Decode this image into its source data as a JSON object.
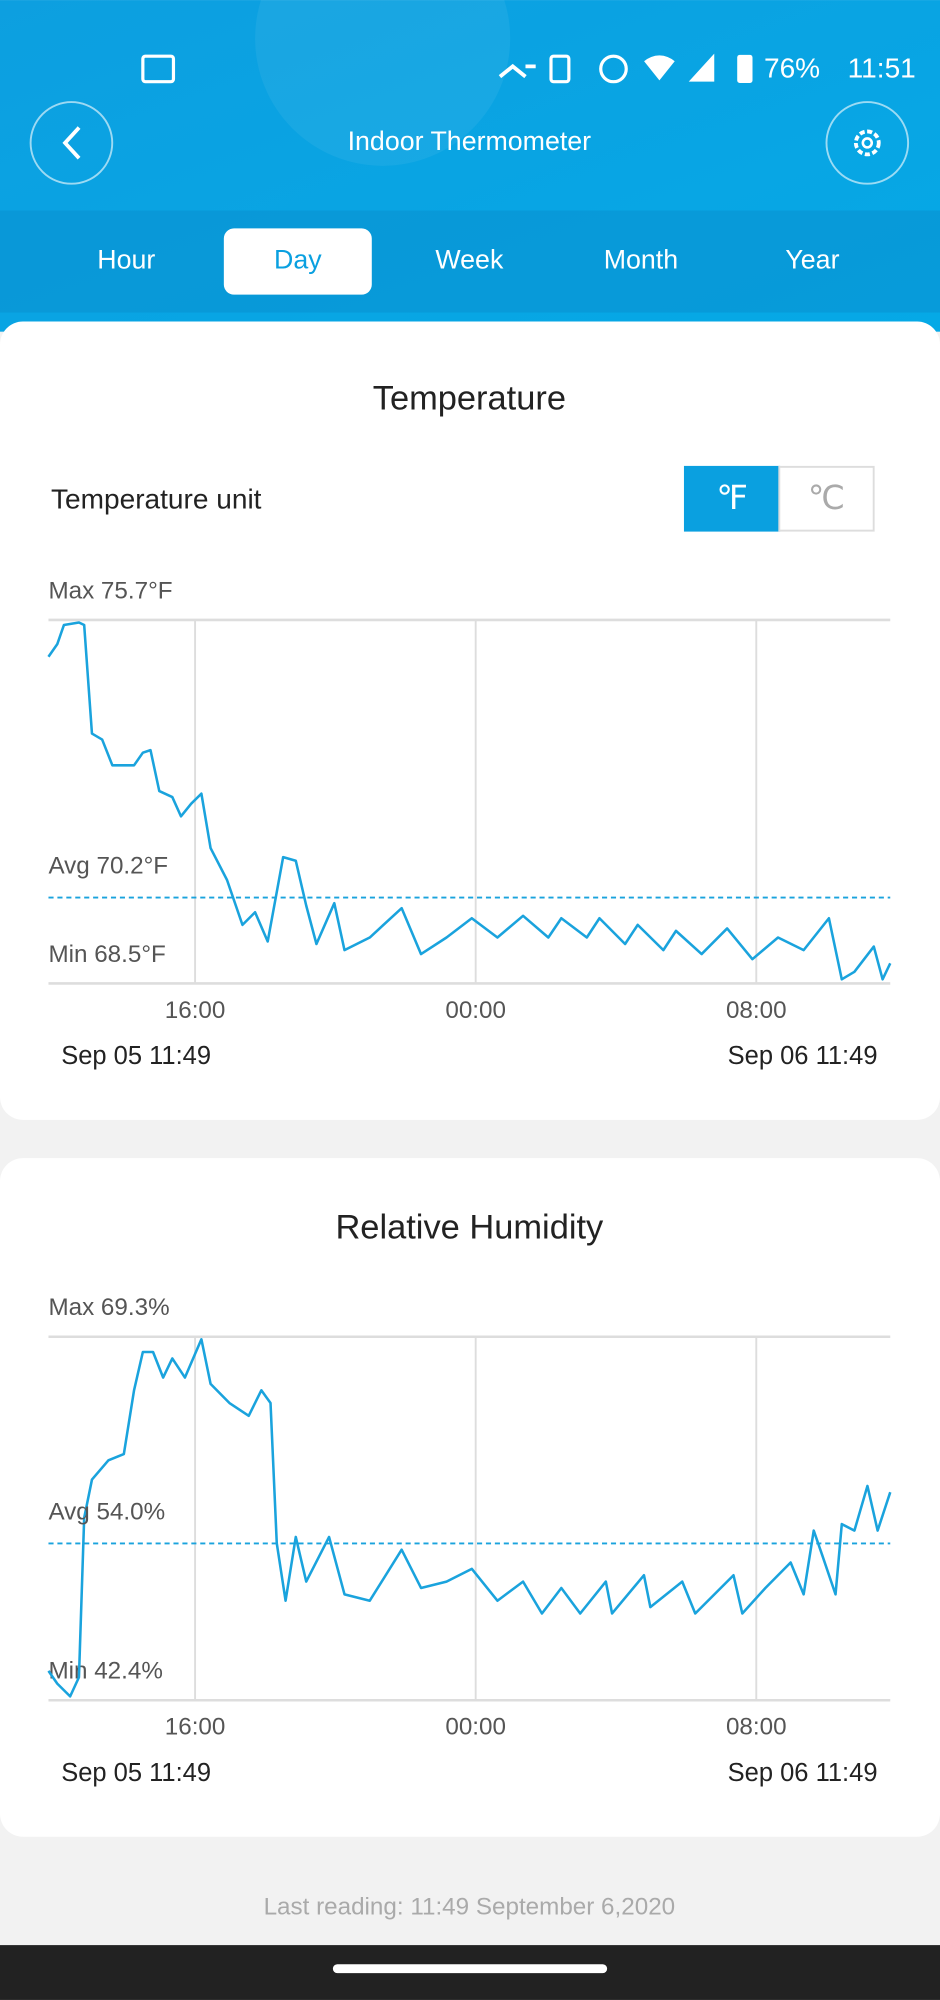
{
  "status_bar": {
    "battery": "76%",
    "time": "11:51"
  },
  "header": {
    "title": "Indoor Thermometer"
  },
  "tabs": [
    {
      "label": "Hour",
      "selected": false
    },
    {
      "label": "Day",
      "selected": true
    },
    {
      "label": "Week",
      "selected": false
    },
    {
      "label": "Month",
      "selected": false
    },
    {
      "label": "Year",
      "selected": false
    }
  ],
  "temperature_unit": {
    "label": "Temperature unit",
    "options": [
      {
        "label": "℉",
        "selected": true
      },
      {
        "label": "℃",
        "selected": false
      }
    ]
  },
  "chart_data": [
    {
      "type": "line",
      "title": "Temperature",
      "color": "#1aa3dd",
      "x": [
        11.82,
        12.07,
        12.26,
        12.69,
        12.84,
        13.06,
        13.35,
        13.64,
        14.26,
        14.51,
        14.73,
        14.98,
        15.35,
        15.6,
        15.89,
        16.18,
        16.44,
        16.91,
        17.35,
        17.71,
        18.07,
        18.51,
        18.87,
        19.17,
        19.46,
        19.97,
        20.26,
        20.98,
        21.89,
        22.44,
        23.17,
        23.89,
        24.62,
        25.35,
        26.07,
        26.44,
        27.17,
        27.53,
        28.26,
        28.62,
        29.35,
        29.71,
        30.44,
        31.17,
        31.89,
        32.62,
        33.35,
        34.07,
        34.44,
        34.8,
        35.35,
        35.6,
        35.82
      ],
      "values": [
        74.97,
        75.22,
        75.6,
        75.65,
        75.6,
        73.45,
        73.33,
        72.82,
        72.82,
        73.07,
        73.12,
        72.31,
        72.19,
        71.81,
        72.06,
        72.26,
        71.18,
        70.55,
        69.66,
        69.91,
        69.33,
        71.0,
        70.93,
        70.04,
        69.28,
        70.09,
        69.16,
        69.41,
        69.99,
        69.08,
        69.41,
        69.79,
        69.41,
        69.84,
        69.41,
        69.79,
        69.41,
        69.79,
        69.28,
        69.66,
        69.16,
        69.54,
        69.08,
        69.59,
        68.98,
        69.41,
        69.16,
        69.79,
        68.58,
        68.73,
        69.23,
        68.58,
        68.9
      ],
      "xlim": [
        11.82,
        35.82
      ],
      "xticks": [
        {
          "value": 16,
          "label": "16:00"
        },
        {
          "value": 24,
          "label": "00:00"
        },
        {
          "value": 32,
          "label": "08:00"
        }
      ],
      "ylim": [
        68.5,
        75.7
      ],
      "yticks": [
        {
          "value": 75.7,
          "label": "Max 75.7°F"
        },
        {
          "value": 68.5,
          "label": "Min 68.5°F"
        }
      ],
      "average": {
        "value": 70.2,
        "label": "Avg 70.2°F"
      },
      "start_label": "Sep 05 11:49",
      "end_label": "Sep 06 11:49"
    },
    {
      "type": "line",
      "title": "Relative Humidity",
      "color": "#1aa3dd",
      "x": [
        11.82,
        12.07,
        12.44,
        12.69,
        12.84,
        13.06,
        13.53,
        13.97,
        14.26,
        14.51,
        14.8,
        15.09,
        15.35,
        15.71,
        16.18,
        16.44,
        16.98,
        17.53,
        17.89,
        18.15,
        18.33,
        18.58,
        18.87,
        19.17,
        19.82,
        20.26,
        20.98,
        21.89,
        22.44,
        23.17,
        23.89,
        24.62,
        25.35,
        25.89,
        26.44,
        26.98,
        27.71,
        27.89,
        28.8,
        28.98,
        29.89,
        30.26,
        31.35,
        31.6,
        32.26,
        32.98,
        33.35,
        33.64,
        33.89,
        34.26,
        34.44,
        34.8,
        35.17,
        35.46,
        35.82
      ],
      "values": [
        44.57,
        43.63,
        42.68,
        44.1,
        55.9,
        58.73,
        60.15,
        60.62,
        65.34,
        68.17,
        68.17,
        66.28,
        67.7,
        66.28,
        69.11,
        65.81,
        64.39,
        63.45,
        65.34,
        64.39,
        54.01,
        49.76,
        54.48,
        51.18,
        54.48,
        50.23,
        49.76,
        53.54,
        50.71,
        51.18,
        52.12,
        49.76,
        51.18,
        48.82,
        50.71,
        48.82,
        51.18,
        48.82,
        51.65,
        49.29,
        51.18,
        48.82,
        51.65,
        48.82,
        50.71,
        52.59,
        50.23,
        54.95,
        53.07,
        50.23,
        55.43,
        54.95,
        58.26,
        54.95,
        57.79
      ],
      "xlim": [
        11.82,
        35.82
      ],
      "xticks": [
        {
          "value": 16,
          "label": "16:00"
        },
        {
          "value": 24,
          "label": "00:00"
        },
        {
          "value": 32,
          "label": "08:00"
        }
      ],
      "ylim": [
        42.4,
        69.3
      ],
      "yticks": [
        {
          "value": 69.3,
          "label": "Max 69.3%"
        },
        {
          "value": 42.4,
          "label": "Min 42.4%"
        }
      ],
      "average": {
        "value": 54.0,
        "label": "Avg 54.0%"
      },
      "start_label": "Sep 05 11:49",
      "end_label": "Sep 06 11:49"
    }
  ],
  "footer": {
    "last_reading": "Last reading: 11:49 September 6,2020"
  }
}
